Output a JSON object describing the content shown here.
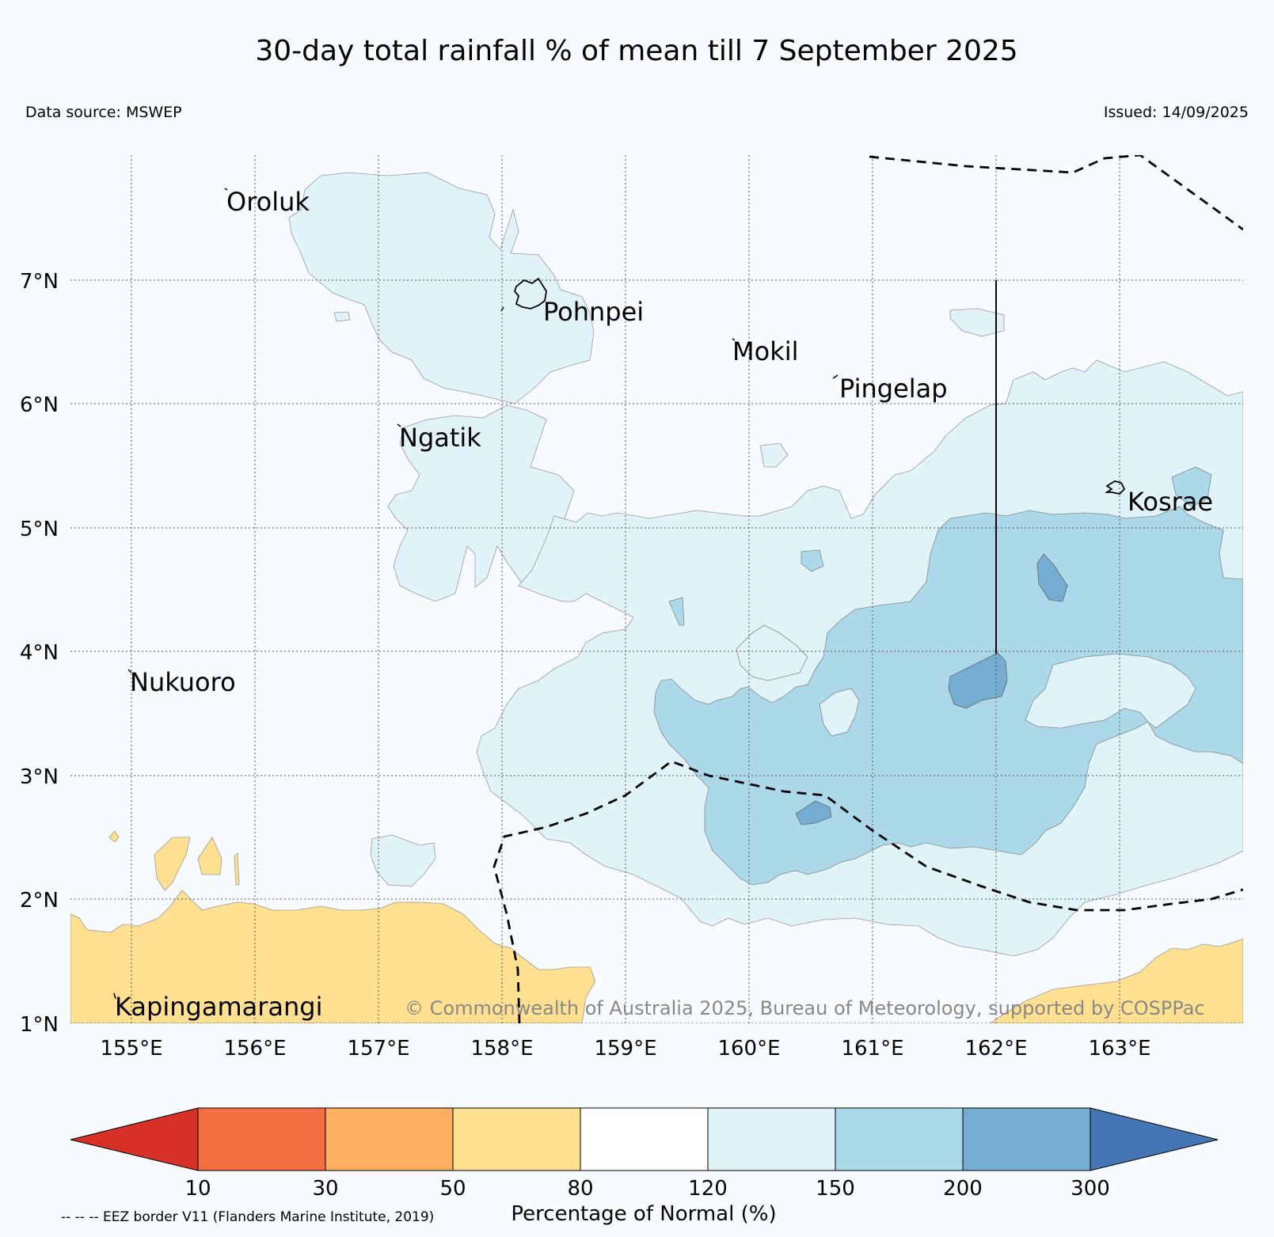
{
  "title": "30-day total rainfall % of mean till 7 September 2025",
  "data_source": "Data source: MSWEP",
  "issued": "Issued: 14/09/2025",
  "credit": "© Commonwealth of Australia 2025, Bureau of Meteorology, supported by COSPPac",
  "eez_note": "-- -- -- EEZ border V11 (Flanders Marine Institute, 2019)",
  "map": {
    "lon_ticks": [
      "155°E",
      "156°E",
      "157°E",
      "158°E",
      "159°E",
      "160°E",
      "161°E",
      "162°E",
      "163°E"
    ],
    "lat_ticks": [
      "7°N",
      "6°N",
      "5°N",
      "4°N",
      "3°N",
      "2°N",
      "1°N"
    ],
    "places": {
      "oroluk": "Oroluk",
      "pohnpei": "Pohnpei",
      "mokil": "Mokil",
      "pingelap": "Pingelap",
      "ngatik": "Ngatik",
      "kosrae": "Kosrae",
      "nukuoro": "Nukuoro",
      "kapingamarangi": "Kapingamarangi"
    }
  },
  "colorbar": {
    "label": "Percentage of Normal (%)",
    "ticks": [
      "10",
      "30",
      "50",
      "80",
      "120",
      "150",
      "200",
      "300"
    ],
    "colors": [
      "#d73027",
      "#f46d43",
      "#fdae61",
      "#fee090",
      "#ffffff",
      "#e0f3f8",
      "#abd9e9",
      "#74add1",
      "#4575b4"
    ]
  }
}
